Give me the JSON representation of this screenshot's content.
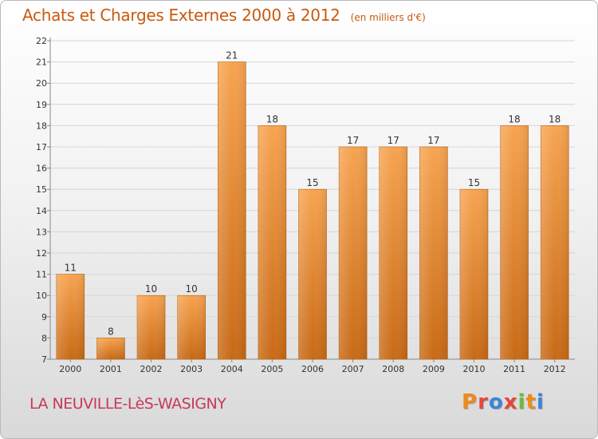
{
  "chart_data": {
    "type": "bar",
    "title": "Achats et Charges Externes 2000 à 2012",
    "subtitle": "(en milliers d'€)",
    "categories": [
      "2000",
      "2001",
      "2002",
      "2003",
      "2004",
      "2005",
      "2006",
      "2007",
      "2008",
      "2009",
      "2010",
      "2011",
      "2012"
    ],
    "values": [
      11,
      8,
      10,
      10,
      21,
      18,
      15,
      17,
      17,
      17,
      15,
      18,
      18
    ],
    "ylim": [
      7,
      22
    ],
    "yticks": [
      7,
      8,
      9,
      10,
      11,
      12,
      13,
      14,
      15,
      16,
      17,
      18,
      19,
      20,
      21,
      22
    ],
    "grid": true,
    "bar_color": "#f0883a"
  },
  "footer": {
    "location": "LA NEUVILLE-LèS-WASIGNY",
    "logo": [
      "P",
      "r",
      "o",
      "x",
      "i",
      "t",
      "i"
    ],
    "logo_colors": [
      "#f08a1c",
      "#e8463a",
      "#3a86d6",
      "#e8463a",
      "#6cbc3a",
      "#f08a1c",
      "#3a86d6"
    ]
  }
}
